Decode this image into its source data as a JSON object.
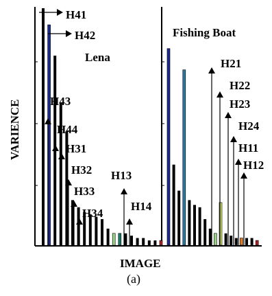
{
  "chart_data": {
    "type": "bar",
    "title": "",
    "xlabel": "IMAGE",
    "ylabel": "VARIENCE",
    "caption": "(a)",
    "grid": false,
    "panels": [
      {
        "name": "Lena",
        "bars": [
          {
            "value": 1.0,
            "color": "#000000"
          },
          {
            "value": 0.93,
            "color": "#1c2a8c"
          },
          {
            "value": 0.8,
            "color": "#000000"
          },
          {
            "value": 0.6,
            "color": "#000000"
          },
          {
            "value": 0.48,
            "color": "#000000"
          },
          {
            "value": 0.19,
            "color": "#000000"
          },
          {
            "value": 0.16,
            "color": "#000000"
          },
          {
            "value": 0.14,
            "color": "#000000"
          },
          {
            "value": 0.13,
            "color": "#000000"
          },
          {
            "value": 0.12,
            "color": "#000000"
          },
          {
            "value": 0.11,
            "color": "#000000"
          },
          {
            "value": 0.07,
            "color": "#000000"
          },
          {
            "value": 0.05,
            "color": "#9ad08a"
          },
          {
            "value": 0.05,
            "color": "#1a7a6a"
          },
          {
            "value": 0.05,
            "color": "#000000"
          },
          {
            "value": 0.04,
            "color": "#000000"
          },
          {
            "value": 0.03,
            "color": "#000000"
          },
          {
            "value": 0.03,
            "color": "#000000"
          },
          {
            "value": 0.02,
            "color": "#000000"
          },
          {
            "value": 0.02,
            "color": "#000000"
          },
          {
            "value": 0.02,
            "color": "#aa2222"
          }
        ],
        "labels": [
          "H41",
          "H42",
          "H43",
          "H44",
          "H31",
          "H32",
          "H33",
          "H34",
          "H13",
          "H14"
        ]
      },
      {
        "name": "Fishing Boat",
        "bars": [
          {
            "value": 0.83,
            "color": "#1c2a8c"
          },
          {
            "value": 0.34,
            "color": "#000000"
          },
          {
            "value": 0.23,
            "color": "#000000"
          },
          {
            "value": 0.74,
            "color": "#2a7aa0"
          },
          {
            "value": 0.19,
            "color": "#000000"
          },
          {
            "value": 0.17,
            "color": "#000000"
          },
          {
            "value": 0.16,
            "color": "#000000"
          },
          {
            "value": 0.11,
            "color": "#000000"
          },
          {
            "value": 0.07,
            "color": "#000000"
          },
          {
            "value": 0.05,
            "color": "#9ad08a"
          },
          {
            "value": 0.18,
            "color": "#c9df6a"
          },
          {
            "value": 0.05,
            "color": "#000000"
          },
          {
            "value": 0.04,
            "color": "#000000"
          },
          {
            "value": 0.03,
            "color": "#000000"
          },
          {
            "value": 0.03,
            "color": "#e07a20"
          },
          {
            "value": 0.03,
            "color": "#000000"
          },
          {
            "value": 0.03,
            "color": "#000000"
          },
          {
            "value": 0.02,
            "color": "#aa2222"
          }
        ],
        "labels": [
          "H21",
          "H22",
          "H23",
          "H24",
          "H11",
          "H12"
        ]
      }
    ]
  }
}
